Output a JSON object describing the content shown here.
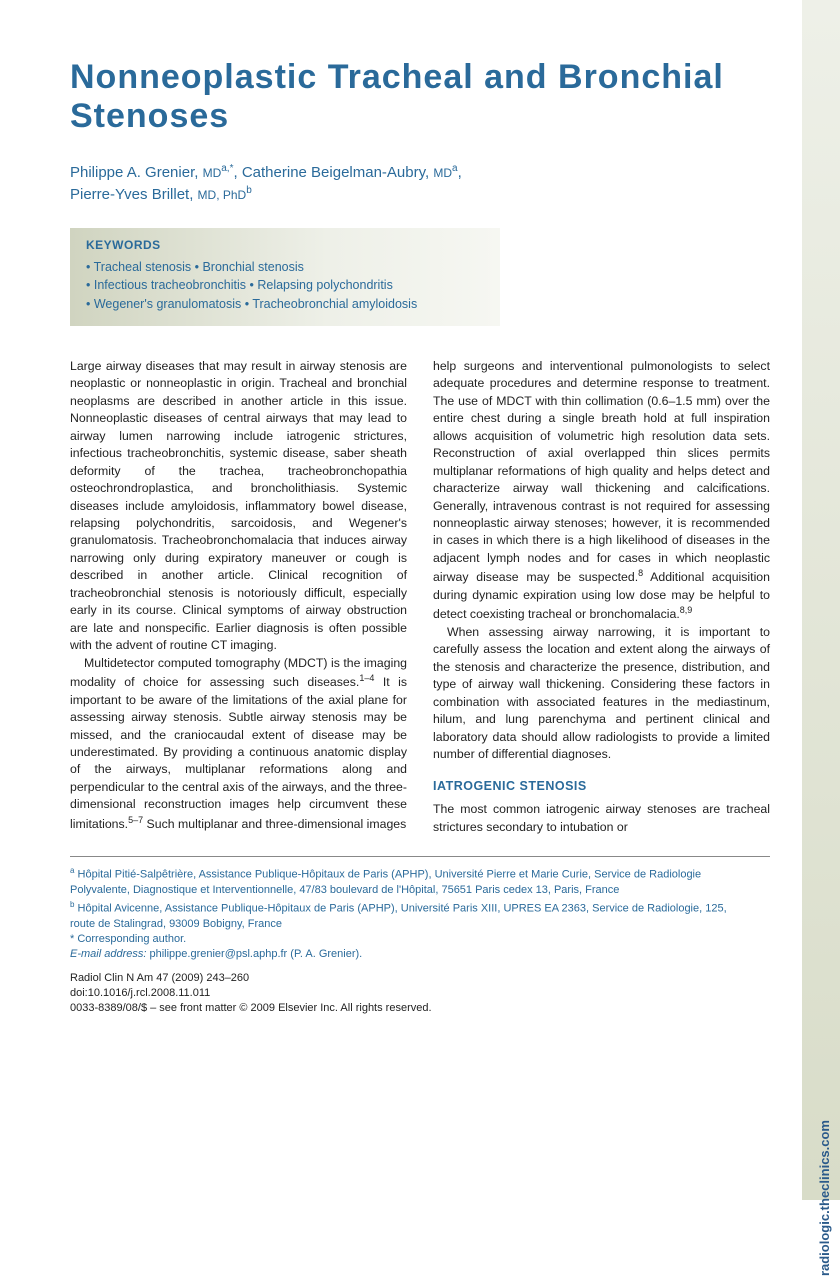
{
  "title": "Nonneoplastic Tracheal and Bronchial Stenoses",
  "authors_line1": "Philippe A. Grenier, ",
  "deg1": "MD",
  "sup1": "a,",
  "star1": "*",
  "sep1": ", Catherine Beigelman-Aubry, ",
  "deg2": "MD",
  "sup2": "a",
  "sep2": ",",
  "authors_line2": "Pierre-Yves Brillet, ",
  "deg3": "MD, PhD",
  "sup3": "b",
  "kw_heading": "KEYWORDS",
  "kw1": "• Tracheal stenosis • Bronchial stenosis",
  "kw2": "• Infectious tracheobronchitis • Relapsing polychondritis",
  "kw3": "• Wegener's granulomatosis • Tracheobronchial amyloidosis",
  "col1_p1": "Large airway diseases that may result in airway stenosis are neoplastic or nonneoplastic in origin. Tracheal and bronchial neoplasms are described in another article in this issue. Nonneoplastic diseases of central airways that may lead to airway lumen narrowing include iatrogenic strictures, infectious tracheobronchitis, systemic disease, saber sheath deformity of the trachea, tracheobronchopathia osteochrondroplastica, and broncholithiasis. Systemic diseases include amyloidosis, inflammatory bowel disease, relapsing polychondritis, sarcoidosis, and Wegener's granulomatosis. Tracheobronchomalacia that induces airway narrowing only during expiratory maneuver or cough is described in another article. Clinical recognition of tracheobronchial stenosis is notoriously difficult, especially early in its course. Clinical symptoms of airway obstruction are late and nonspecific. Earlier diagnosis is often possible with the advent of routine CT imaging.",
  "col1_p2a": "Multidetector computed tomography (MDCT) is the imaging modality of choice for assessing such diseases.",
  "col1_ref1": "1–4",
  "col1_p2b": " It is important to be aware of the limitations of the axial plane for assessing airway stenosis. Subtle airway stenosis may be missed, and the craniocaudal extent of disease may be underestimated. By providing a continuous anatomic display of the airways, multiplanar reformations along and perpendicular to the central axis of the airways, and the three-dimensional reconstruction images help circumvent these limitations.",
  "col1_ref2": "5–7",
  "col1_p2c": " Such multiplanar and three-dimensional images",
  "col2_p1a": "help surgeons and interventional pulmonologists to select adequate procedures and determine response to treatment. The use of MDCT with thin collimation (0.6–1.5 mm) over the entire chest during a single breath hold at full inspiration allows acquisition of volumetric high resolution data sets. Reconstruction of axial overlapped thin slices permits multiplanar reformations of high quality and helps detect and characterize airway wall thickening and calcifications. Generally, intravenous contrast is not required for assessing nonneoplastic airway stenoses; however, it is recommended in cases in which there is a high likelihood of diseases in the adjacent lymph nodes and for cases in which neoplastic airway disease may be suspected.",
  "col2_ref1": "8",
  "col2_p1b": " Additional acquisition during dynamic expiration using low dose may be helpful to detect coexisting tracheal or bronchomalacia.",
  "col2_ref2": "8,9",
  "col2_p2": "When assessing airway narrowing, it is important to carefully assess the location and extent along the airways of the stenosis and characterize the presence, distribution, and type of airway wall thickening. Considering these factors in combination with associated features in the mediastinum, hilum, and lung parenchyma and pertinent clinical and laboratory data should allow radiologists to provide a limited number of differential diagnoses.",
  "section1": "IATROGENIC STENOSIS",
  "col2_p3": "The most common iatrogenic airway stenoses are tracheal strictures secondary to intubation or",
  "fn_a_sup": "a",
  "fn_a": " Hôpital Pitié-Salpêtrière, Assistance Publique-Hôpitaux de Paris (APHP), Université Pierre et Marie Curie, Service de Radiologie Polyvalente, Diagnostique et Interventionnelle, 47/83 boulevard de l'Hôpital, 75651 Paris cedex 13, Paris, France",
  "fn_b_sup": "b",
  "fn_b": " Hôpital Avicenne, Assistance Publique-Hôpitaux de Paris (APHP), Université Paris XIII, UPRES EA 2363, Service de Radiologie, 125, route de Stalingrad, 93009 Bobigny, France",
  "fn_corr": "* Corresponding author.",
  "fn_email_label": "E-mail address:",
  "fn_email": " philippe.grenier@psl.aphp.fr (P. A. Grenier).",
  "cite1": "Radiol Clin N Am 47 (2009) 243–260",
  "cite2": "doi:10.1016/j.rcl.2008.11.011",
  "cite3": "0033-8389/08/$ – see front matter © 2009 Elsevier Inc. All rights reserved.",
  "side_label": "radiologic.theclinics.com"
}
